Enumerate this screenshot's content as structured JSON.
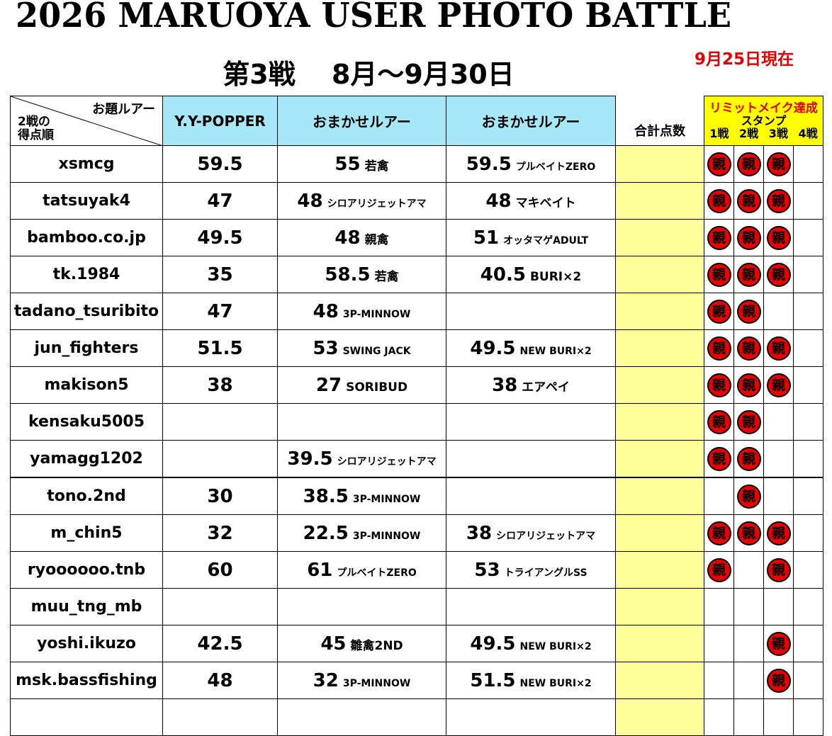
{
  "header": {
    "title": "2026 MARUOYA USER PHOTO BATTLE",
    "subtitle": "第3戦　 8月～9月30日",
    "as_of": "9月25日現在"
  },
  "table": {
    "corner_top": "お題ルアー",
    "corner_bottom": [
      "2戦の",
      "得点順"
    ],
    "columns": [
      "Y.Y-POPPER",
      "おまかせルアー",
      "おまかせルアー",
      "合計点数"
    ],
    "stamp_header": {
      "title": "リミットメイク達成",
      "subtitle": "スタンプ",
      "rounds": [
        "1戦",
        "2戦",
        "3戦",
        "4戦"
      ]
    },
    "stamp_text": "親",
    "rows": [
      {
        "name": "xsmcg",
        "c1": 59.5,
        "c2": {
          "score": 55,
          "lure": "若禽"
        },
        "c3": {
          "score": 59.5,
          "lure": "プルベイトZERO"
        },
        "stamps": [
          true,
          true,
          true,
          false
        ]
      },
      {
        "name": "tatsuyak4",
        "c1": 47,
        "c2": {
          "score": 48,
          "lure": "シロアリジェットアマ"
        },
        "c3": {
          "score": 48,
          "lure": "マキベイト"
        },
        "stamps": [
          true,
          true,
          true,
          false
        ]
      },
      {
        "name": "bamboo.co.jp",
        "c1": 49.5,
        "c2": {
          "score": 48,
          "lure": "親禽"
        },
        "c3": {
          "score": 51,
          "lure": "オッタマゲADULT"
        },
        "stamps": [
          true,
          true,
          true,
          false
        ]
      },
      {
        "name": "tk.1984",
        "c1": 35,
        "c2": {
          "score": 58.5,
          "lure": "若禽"
        },
        "c3": {
          "score": 40.5,
          "lure": "BURI×2"
        },
        "stamps": [
          true,
          true,
          true,
          false
        ]
      },
      {
        "name": "tadano_tsuribito",
        "c1": 47,
        "c2": {
          "score": 48,
          "lure": "3P-MINNOW"
        },
        "c3": null,
        "stamps": [
          true,
          true,
          false,
          false
        ]
      },
      {
        "name": "jun_fighters",
        "c1": 51.5,
        "c2": {
          "score": 53,
          "lure": "SWING JACK"
        },
        "c3": {
          "score": 49.5,
          "lure": "NEW BURI×2"
        },
        "stamps": [
          true,
          true,
          true,
          false
        ]
      },
      {
        "name": "makison5",
        "c1": 38,
        "c2": {
          "score": 27,
          "lure": "SORIBUD"
        },
        "c3": {
          "score": 38,
          "lure": "エアペイ"
        },
        "stamps": [
          true,
          true,
          true,
          false
        ]
      },
      {
        "name": "kensaku5005",
        "c1": null,
        "c2": null,
        "c3": null,
        "stamps": [
          true,
          true,
          false,
          false
        ]
      },
      {
        "name": "yamagg1202",
        "c1": null,
        "c2": {
          "score": 39.5,
          "lure": "シロアリジェットアマ"
        },
        "c3": null,
        "stamps": [
          true,
          true,
          false,
          false
        ]
      },
      {
        "name": "tono.2nd",
        "c1": 30,
        "c2": {
          "score": 38.5,
          "lure": "3P-MINNOW"
        },
        "c3": null,
        "stamps": [
          false,
          true,
          false,
          false
        ]
      },
      {
        "name": "m_chin5",
        "c1": 32,
        "c2": {
          "score": 22.5,
          "lure": "3P-MINNOW"
        },
        "c3": {
          "score": 38,
          "lure": "シロアリジェットアマ"
        },
        "stamps": [
          true,
          true,
          true,
          false
        ]
      },
      {
        "name": "ryoooooo.tnb",
        "c1": 60,
        "c2": {
          "score": 61,
          "lure": "プルベイトZERO"
        },
        "c3": {
          "score": 53,
          "lure": "トライアングルSS"
        },
        "stamps": [
          true,
          false,
          true,
          false
        ]
      },
      {
        "name": "muu_tng_mb",
        "c1": null,
        "c2": null,
        "c3": null,
        "stamps": [
          false,
          false,
          false,
          false
        ]
      },
      {
        "name": "yoshi.ikuzo",
        "c1": 42.5,
        "c2": {
          "score": 45,
          "lure": "雛禽2ND"
        },
        "c3": {
          "score": 49.5,
          "lure": "NEW BURI×2"
        },
        "stamps": [
          false,
          false,
          true,
          false
        ]
      },
      {
        "name": "msk.bassfishing",
        "c1": 48,
        "c2": {
          "score": 32,
          "lure": "3P-MINNOW"
        },
        "c3": {
          "score": 51.5,
          "lure": "NEW BURI×2"
        },
        "stamps": [
          false,
          false,
          true,
          false
        ]
      }
    ]
  }
}
